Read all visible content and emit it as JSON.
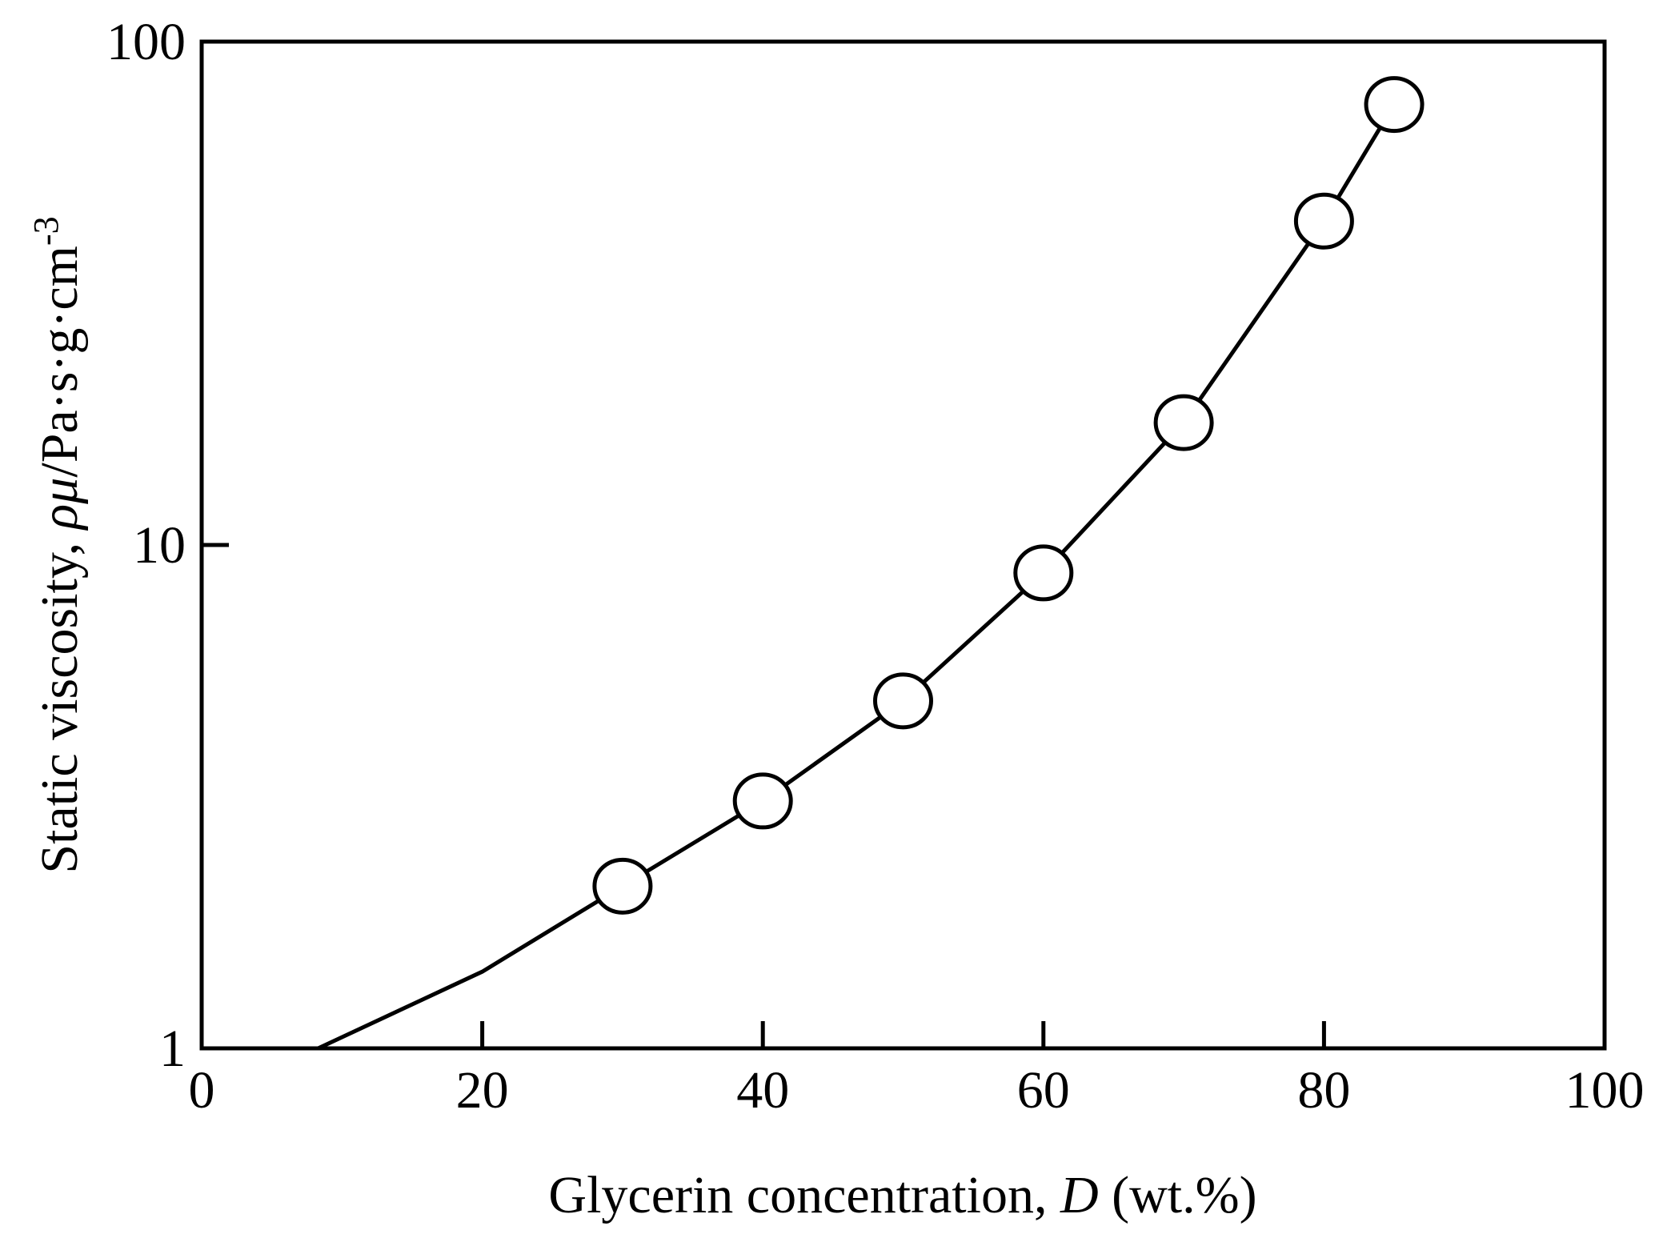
{
  "chart_data": {
    "type": "line",
    "title": "",
    "x_axis": {
      "label_parts": [
        {
          "text": "Glycerin  concentration,  ",
          "italic": false
        },
        {
          "text": "D",
          "italic": true
        },
        {
          "text": " (wt.%)",
          "italic": false
        }
      ],
      "range": [
        0,
        100
      ],
      "ticks": [
        0,
        20,
        40,
        60,
        80,
        100
      ],
      "tick_labels": [
        "0",
        "20",
        "40",
        "60",
        "80",
        "100"
      ]
    },
    "y_axis": {
      "label_parts": [
        {
          "text": "Static viscosity,  ",
          "italic": false,
          "sup": false
        },
        {
          "text": "ρμ",
          "italic": true,
          "sup": false
        },
        {
          "text": "/Pa·s·g·cm",
          "italic": false,
          "sup": false
        },
        {
          "text": "-3",
          "italic": false,
          "sup": true
        }
      ],
      "scale": "log",
      "range": [
        1,
        100
      ],
      "ticks": [
        1,
        10,
        100
      ],
      "tick_labels": [
        "1",
        "10",
        "100"
      ]
    },
    "grid": false,
    "legend": "none",
    "series": [
      {
        "markers": "open-circle",
        "points": [
          {
            "x": 30,
            "y": 2.1
          },
          {
            "x": 40,
            "y": 3.1
          },
          {
            "x": 50,
            "y": 4.9
          },
          {
            "x": 60,
            "y": 8.8
          },
          {
            "x": 70,
            "y": 17.5
          },
          {
            "x": 80,
            "y": 44
          },
          {
            "x": 85,
            "y": 75
          }
        ],
        "curve": [
          {
            "x": 8.3,
            "y": 1.0
          },
          {
            "x": 20,
            "y": 1.42
          },
          {
            "x": 30,
            "y": 2.1
          },
          {
            "x": 40,
            "y": 3.1
          },
          {
            "x": 50,
            "y": 4.9
          },
          {
            "x": 60,
            "y": 8.8
          },
          {
            "x": 70,
            "y": 17.5
          },
          {
            "x": 80,
            "y": 44
          },
          {
            "x": 85,
            "y": 75
          }
        ]
      }
    ],
    "colors": {
      "line": "#000000",
      "marker_fill": "#ffffff",
      "marker_stroke": "#000000",
      "axis": "#000000"
    }
  }
}
